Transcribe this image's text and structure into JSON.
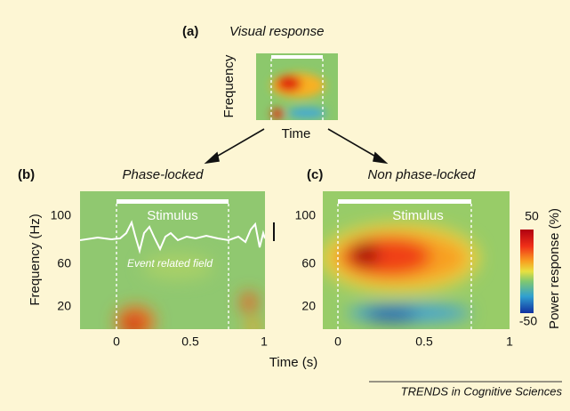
{
  "panel_a": {
    "label": "(a)",
    "title": "Visual response",
    "y_label": "Frequency",
    "x_label": "Time"
  },
  "panel_b": {
    "label": "(b)",
    "title": "Phase-locked",
    "stimulus": "Stimulus",
    "annotation": "Event related field"
  },
  "panel_c": {
    "label": "(c)",
    "title": "Non phase-locked",
    "stimulus": "Stimulus"
  },
  "axes": {
    "y_label": "Frequency (Hz)",
    "x_label": "Time (s)",
    "yticks": [
      100,
      60,
      20
    ],
    "xticks": [
      0,
      0.5,
      1
    ]
  },
  "colorbar": {
    "label": "Power response (%)",
    "ticks": [
      50,
      -50
    ]
  },
  "footer": "TRENDS in Cognitive Sciences"
}
